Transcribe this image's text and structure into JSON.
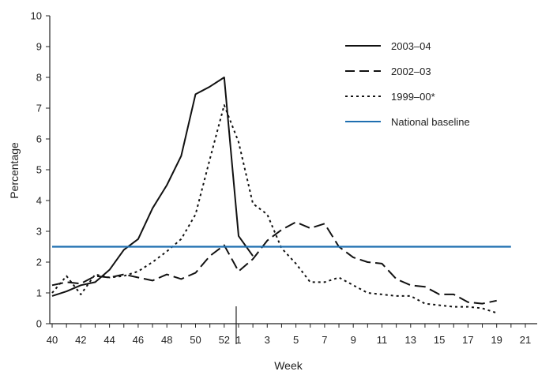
{
  "chart_data": {
    "type": "line",
    "title": "",
    "xlabel": "Week",
    "ylabel": "Percentage",
    "ylim": [
      0,
      10
    ],
    "yticks": [
      "0",
      "1",
      "2",
      "3",
      "4",
      "5",
      "6",
      "7",
      "8",
      "9",
      "10"
    ],
    "x_categories": [
      "40",
      "41",
      "42",
      "43",
      "44",
      "45",
      "46",
      "47",
      "48",
      "49",
      "50",
      "51",
      "52",
      "1",
      "2",
      "3",
      "4",
      "5",
      "6",
      "7",
      "8",
      "9",
      "10",
      "11",
      "12",
      "13",
      "14",
      "15",
      "16",
      "17",
      "18",
      "19",
      "20",
      "21"
    ],
    "xtick_labels": [
      "40",
      "42",
      "44",
      "46",
      "48",
      "50",
      "52",
      "1",
      "3",
      "5",
      "7",
      "9",
      "11",
      "13",
      "15",
      "17",
      "19",
      "21"
    ],
    "legend_position": "top-right",
    "grid": false,
    "series": [
      {
        "name": "2003–04",
        "style": "solid",
        "color": "#111111",
        "values": [
          0.9,
          1.05,
          1.25,
          1.35,
          1.75,
          2.4,
          2.75,
          3.75,
          4.5,
          5.45,
          7.45,
          7.7,
          8.0,
          2.85,
          2.2
        ]
      },
      {
        "name": "2002–03",
        "style": "dashed",
        "color": "#111111",
        "values": [
          1.25,
          1.35,
          1.3,
          1.55,
          1.5,
          1.6,
          1.5,
          1.4,
          1.6,
          1.45,
          1.65,
          2.2,
          2.55,
          1.7,
          2.1,
          2.7,
          3.05,
          3.3,
          3.1,
          3.25,
          2.5,
          2.15,
          2.0,
          1.95,
          1.45,
          1.25,
          1.2,
          0.95,
          0.95,
          0.7,
          0.65,
          0.75
        ]
      },
      {
        "name": "1999–00*",
        "style": "dotted",
        "color": "#111111",
        "values": [
          1.0,
          1.55,
          0.95,
          1.6,
          1.5,
          1.55,
          1.7,
          2.0,
          2.35,
          2.75,
          3.55,
          5.35,
          7.1,
          5.9,
          3.9,
          3.55,
          2.45,
          1.95,
          1.35,
          1.35,
          1.5,
          1.25,
          1.0,
          0.95,
          0.9,
          0.9,
          0.65,
          0.6,
          0.55,
          0.55,
          0.5,
          0.35
        ]
      },
      {
        "name": "National baseline",
        "style": "solid",
        "color": "#1f6fb0",
        "constant": 2.5,
        "x_from": "40",
        "x_to": "20"
      }
    ]
  }
}
